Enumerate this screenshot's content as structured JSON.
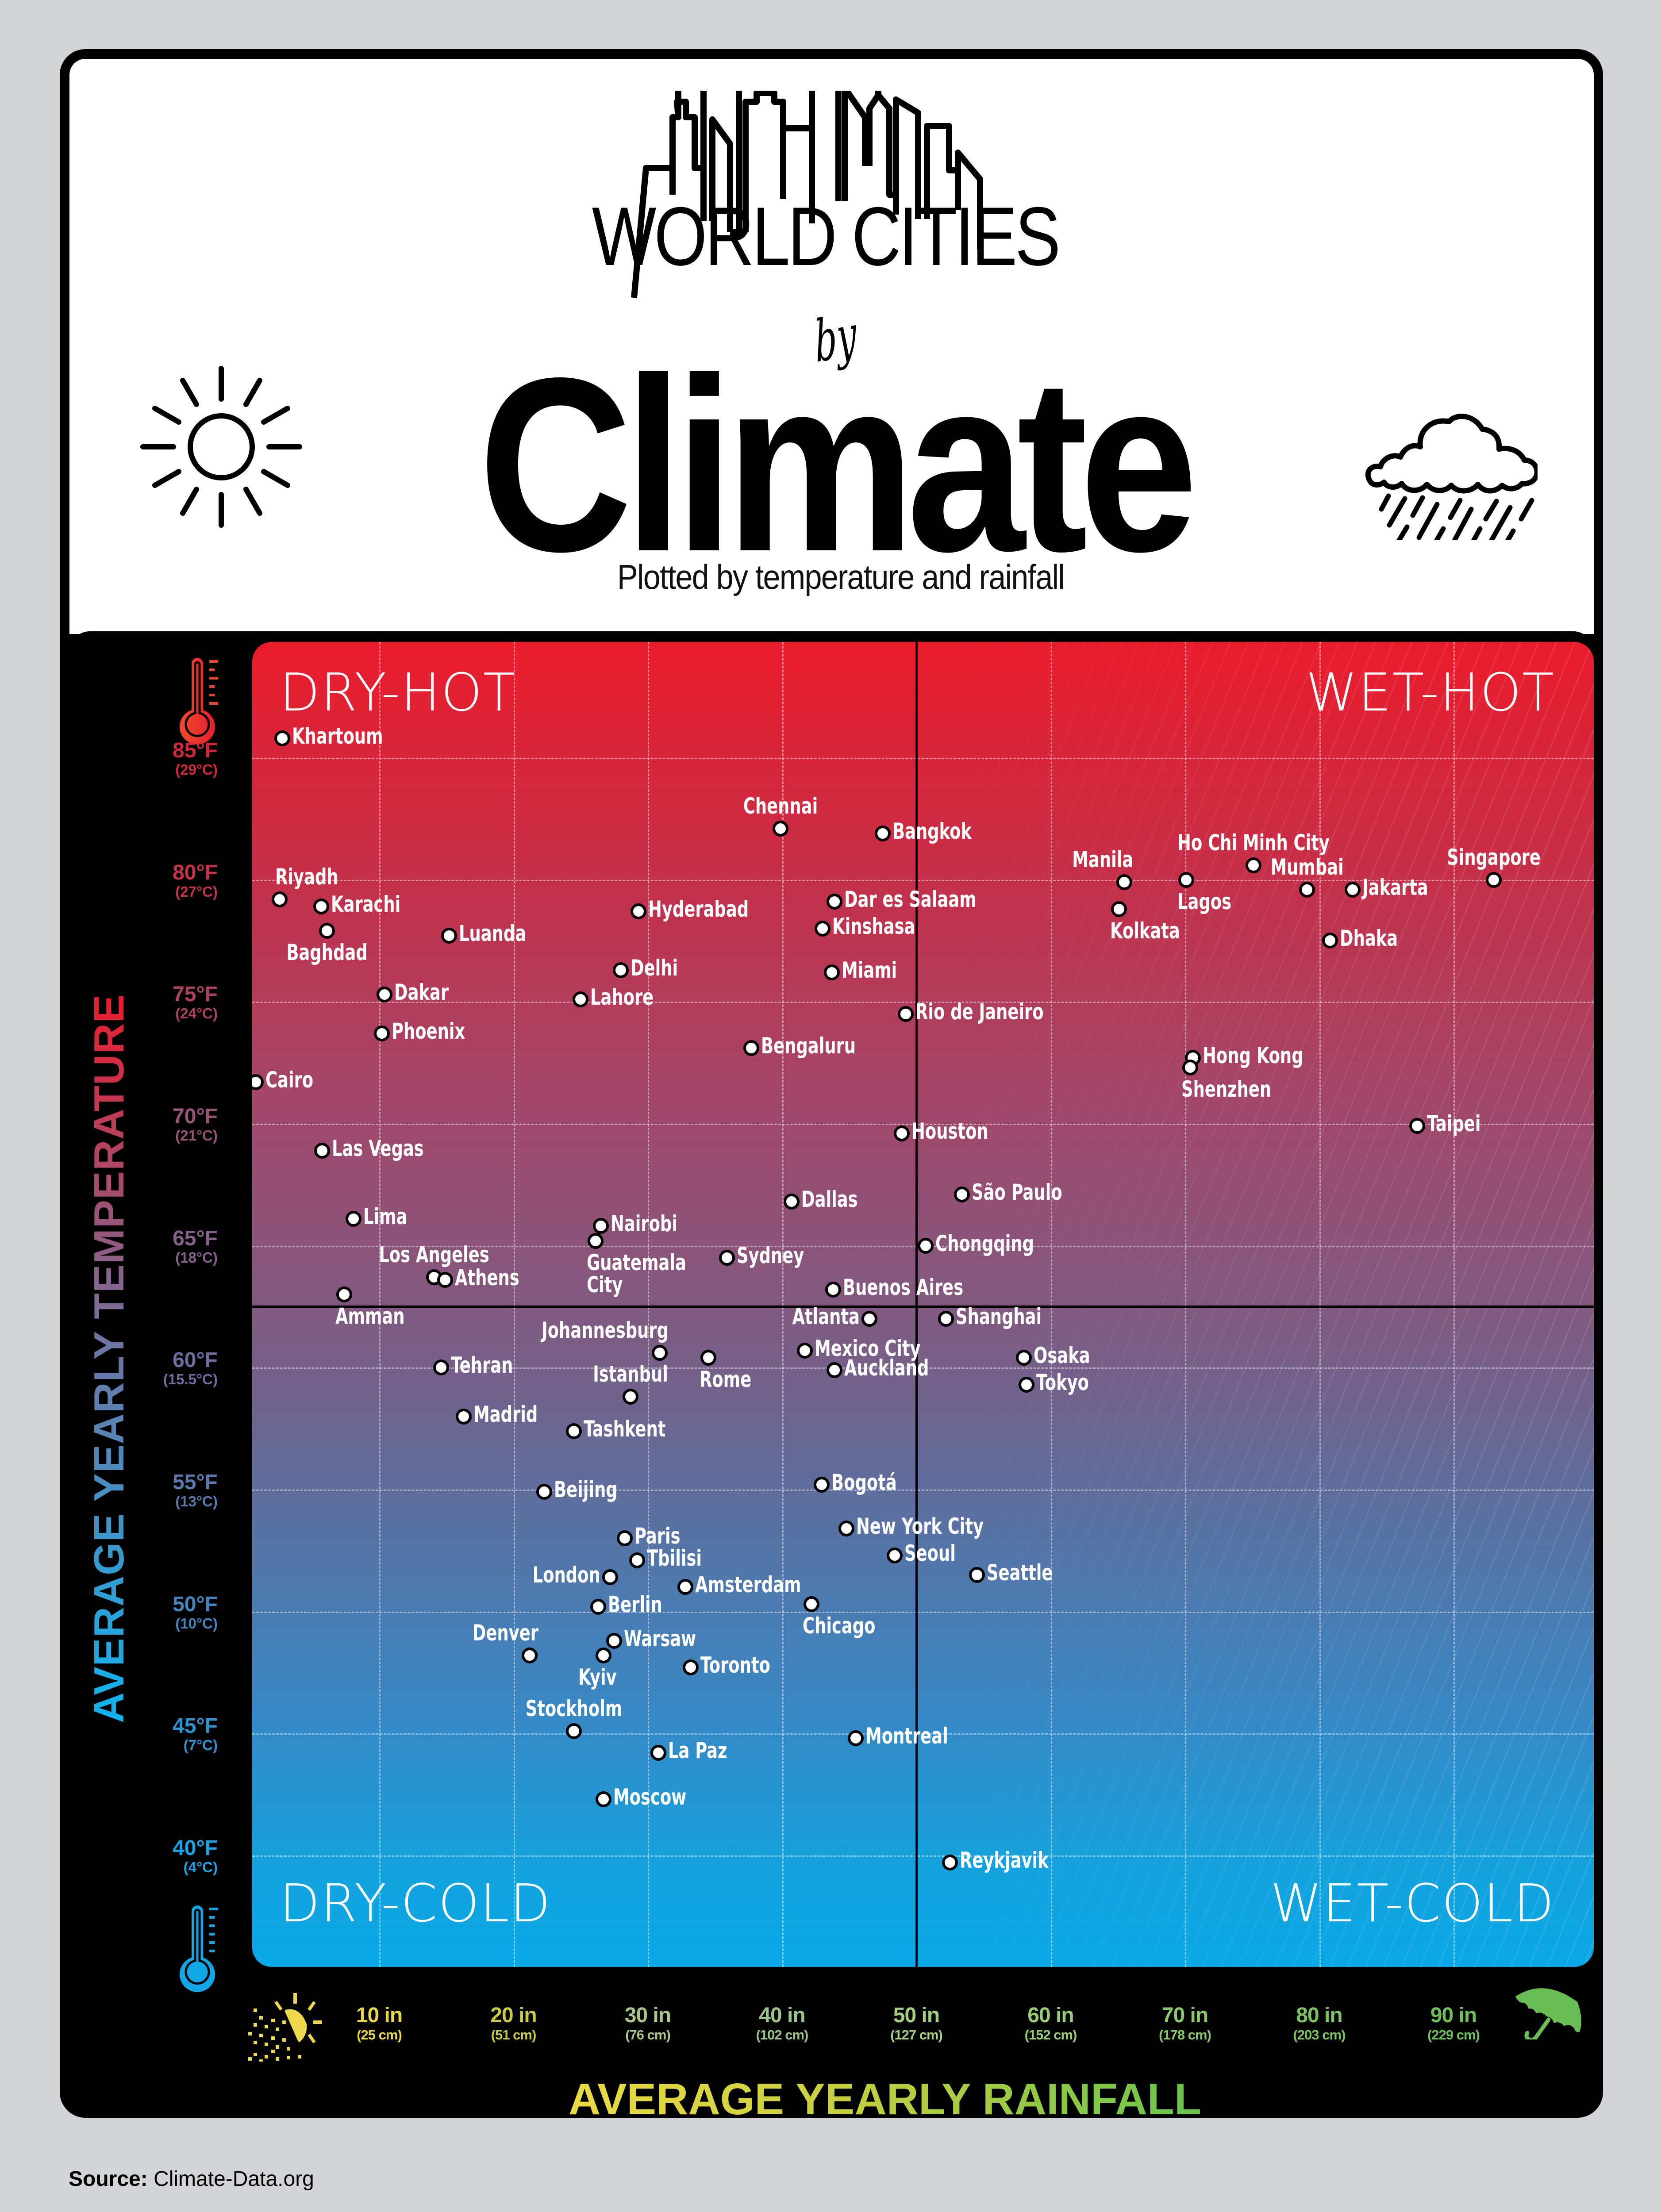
{
  "header": {
    "title_line1": "WORLD CITIES",
    "title_by": "by",
    "title_main": "Climate",
    "subtitle": "Plotted by temperature and rainfall",
    "icons": {
      "left": "sun-icon",
      "right": "rain-cloud-icon",
      "skyline": "city-skyline-icon"
    }
  },
  "quadrants": {
    "top_left": "DRY-HOT",
    "top_right": "WET-HOT",
    "bottom_left": "DRY-COLD",
    "bottom_right": "WET-COLD"
  },
  "y_axis": {
    "title": "AVERAGE YEARLY TEMPERATURE",
    "ticks": [
      {
        "f": "85°F",
        "c": "(29°C)",
        "value": 85,
        "color": "#d0293c"
      },
      {
        "f": "80°F",
        "c": "(27°C)",
        "value": 80,
        "color": "#c3334a"
      },
      {
        "f": "75°F",
        "c": "(24°C)",
        "value": 75,
        "color": "#ad4260"
      },
      {
        "f": "70°F",
        "c": "(21°C)",
        "value": 70,
        "color": "#965476"
      },
      {
        "f": "65°F",
        "c": "(18°C)",
        "value": 65,
        "color": "#83618a"
      },
      {
        "f": "60°F",
        "c": "(15.5°C)",
        "value": 60,
        "color": "#6e6c9e"
      },
      {
        "f": "55°F",
        "c": "(13°C)",
        "value": 55,
        "color": "#5b78ab"
      },
      {
        "f": "50°F",
        "c": "(10°C)",
        "value": 50,
        "color": "#4585bd"
      },
      {
        "f": "45°F",
        "c": "(7°C)",
        "value": 45,
        "color": "#2f93cf"
      },
      {
        "f": "40°F",
        "c": "(4°C)",
        "value": 40,
        "color": "#1aa2e2"
      }
    ],
    "icons": {
      "top": "hot-thermometer-icon",
      "bottom": "cold-thermometer-icon"
    }
  },
  "x_axis": {
    "title": "AVERAGE YEARLY RAINFALL",
    "ticks": [
      {
        "i": "10 in",
        "c": "(25 cm)",
        "value": 10,
        "color": "#e8d64a"
      },
      {
        "i": "20 in",
        "c": "(51 cm)",
        "value": 20,
        "color": "#c9c948"
      },
      {
        "i": "30 in",
        "c": "(76 cm)",
        "value": 30,
        "color": "#a8c48a"
      },
      {
        "i": "40 in",
        "c": "(102 cm)",
        "value": 40,
        "color": "#9cc48a"
      },
      {
        "i": "50 in",
        "c": "(127 cm)",
        "value": 50,
        "color": "#a5cf7e"
      },
      {
        "i": "60 in",
        "c": "(152 cm)",
        "value": 60,
        "color": "#98cc72"
      },
      {
        "i": "70 in",
        "c": "(178 cm)",
        "value": 70,
        "color": "#8ac86a"
      },
      {
        "i": "80 in",
        "c": "(203 cm)",
        "value": 80,
        "color": "#7cc462"
      },
      {
        "i": "90 in",
        "c": "(229 cm)",
        "value": 90,
        "color": "#6fc05a"
      }
    ],
    "icons": {
      "left": "dry-sun-icon",
      "right": "umbrella-icon"
    }
  },
  "source": {
    "label": "Source:",
    "value": "Climate-Data.org"
  },
  "colors": {
    "hot": "#ea1c2c",
    "cold": "#0aa8e6",
    "rainfall_dry": "#f0dd45",
    "rainfall_wet": "#5fc24e",
    "frame": "#000000",
    "page_bg": "#d3d4d6"
  },
  "chart_data": {
    "type": "scatter",
    "title": "World Cities by Climate",
    "subtitle": "Plotted by temperature and rainfall",
    "xlabel": "Average Yearly Rainfall (in)",
    "ylabel": "Average Yearly Temperature (°F)",
    "xlim": [
      0.5,
      100.4
    ],
    "ylim": [
      34.5,
      88.7
    ],
    "x_ticks": [
      10,
      20,
      30,
      40,
      50,
      60,
      70,
      80,
      90
    ],
    "y_ticks": [
      40,
      45,
      50,
      55,
      60,
      65,
      70,
      75,
      80,
      85
    ],
    "divider_x": 50,
    "divider_y": 62.5,
    "grid": true,
    "quadrant_labels": [
      "DRY-HOT",
      "WET-HOT",
      "DRY-COLD",
      "WET-COLD"
    ],
    "points": [
      {
        "city": "Khartoum",
        "rain_in": 2.8,
        "temp_f": 85.8,
        "label": "r"
      },
      {
        "city": "Chennai",
        "rain_in": 39.9,
        "temp_f": 82.1,
        "label": "t"
      },
      {
        "city": "Bangkok",
        "rain_in": 47.5,
        "temp_f": 81.9,
        "label": "r"
      },
      {
        "city": "Ho Chi Minh City",
        "rain_in": 75.1,
        "temp_f": 80.6,
        "label": "t"
      },
      {
        "city": "Singapore",
        "rain_in": 93.0,
        "temp_f": 80.0,
        "label": "t"
      },
      {
        "city": "Manila",
        "rain_in": 65.5,
        "temp_f": 79.9,
        "label": "tl"
      },
      {
        "city": "Lagos",
        "rain_in": 70.1,
        "temp_f": 80.0,
        "label": "br"
      },
      {
        "city": "Mumbai",
        "rain_in": 79.1,
        "temp_f": 79.6,
        "label": "t"
      },
      {
        "city": "Jakarta",
        "rain_in": 82.5,
        "temp_f": 79.6,
        "label": "r"
      },
      {
        "city": "Riyadh",
        "rain_in": 2.6,
        "temp_f": 79.2,
        "label": "tr"
      },
      {
        "city": "Dar es Salaam",
        "rain_in": 43.9,
        "temp_f": 79.1,
        "label": "r"
      },
      {
        "city": "Karachi",
        "rain_in": 5.7,
        "temp_f": 78.9,
        "label": "r"
      },
      {
        "city": "Kolkata",
        "rain_in": 65.1,
        "temp_f": 78.8,
        "label": "br"
      },
      {
        "city": "Hyderabad",
        "rain_in": 29.3,
        "temp_f": 78.7,
        "label": "r"
      },
      {
        "city": "Kinshasa",
        "rain_in": 43.0,
        "temp_f": 78.0,
        "label": "r"
      },
      {
        "city": "Baghdad",
        "rain_in": 6.1,
        "temp_f": 77.9,
        "label": "b"
      },
      {
        "city": "Luanda",
        "rain_in": 15.2,
        "temp_f": 77.7,
        "label": "r"
      },
      {
        "city": "Dhaka",
        "rain_in": 80.8,
        "temp_f": 77.5,
        "label": "r"
      },
      {
        "city": "Delhi",
        "rain_in": 28.0,
        "temp_f": 76.3,
        "label": "r"
      },
      {
        "city": "Miami",
        "rain_in": 43.7,
        "temp_f": 76.2,
        "label": "r"
      },
      {
        "city": "Dakar",
        "rain_in": 10.4,
        "temp_f": 75.3,
        "label": "r"
      },
      {
        "city": "Lahore",
        "rain_in": 25.0,
        "temp_f": 75.1,
        "label": "r"
      },
      {
        "city": "Rio de Janeiro",
        "rain_in": 49.2,
        "temp_f": 74.5,
        "label": "r"
      },
      {
        "city": "Phoenix",
        "rain_in": 10.2,
        "temp_f": 73.7,
        "label": "r"
      },
      {
        "city": "Bengaluru",
        "rain_in": 37.7,
        "temp_f": 73.1,
        "label": "r"
      },
      {
        "city": "Hong Kong",
        "rain_in": 70.6,
        "temp_f": 72.7,
        "label": "r"
      },
      {
        "city": "Shenzhen",
        "rain_in": 70.4,
        "temp_f": 72.3,
        "label": "br"
      },
      {
        "city": "Cairo",
        "rain_in": 0.8,
        "temp_f": 71.7,
        "label": "r"
      },
      {
        "city": "Taipei",
        "rain_in": 87.3,
        "temp_f": 69.9,
        "label": "r"
      },
      {
        "city": "Houston",
        "rain_in": 48.9,
        "temp_f": 69.6,
        "label": "r"
      },
      {
        "city": "Las Vegas",
        "rain_in": 5.75,
        "temp_f": 68.9,
        "label": "r"
      },
      {
        "city": "São Paulo",
        "rain_in": 53.4,
        "temp_f": 67.1,
        "label": "r"
      },
      {
        "city": "Dallas",
        "rain_in": 40.7,
        "temp_f": 66.8,
        "label": "r"
      },
      {
        "city": "Lima",
        "rain_in": 8.1,
        "temp_f": 66.1,
        "label": "r"
      },
      {
        "city": "Nairobi",
        "rain_in": 26.5,
        "temp_f": 65.8,
        "label": "r"
      },
      {
        "city": "Guatemala City",
        "rain_in": 26.1,
        "temp_f": 65.2,
        "label": "br"
      },
      {
        "city": "Chongqing",
        "rain_in": 50.7,
        "temp_f": 65.0,
        "label": "r"
      },
      {
        "city": "Sydney",
        "rain_in": 35.9,
        "temp_f": 64.5,
        "label": "r"
      },
      {
        "city": "Los Angeles",
        "rain_in": 14.1,
        "temp_f": 63.7,
        "label": "t"
      },
      {
        "city": "Athens",
        "rain_in": 14.9,
        "temp_f": 63.6,
        "label": "r"
      },
      {
        "city": "Buenos Aires",
        "rain_in": 43.8,
        "temp_f": 63.2,
        "label": "r"
      },
      {
        "city": "Amman",
        "rain_in": 7.4,
        "temp_f": 63.0,
        "label": "br"
      },
      {
        "city": "Atlanta",
        "rain_in": 46.5,
        "temp_f": 62.0,
        "label": "l"
      },
      {
        "city": "Shanghai",
        "rain_in": 52.2,
        "temp_f": 62.0,
        "label": "r"
      },
      {
        "city": "Mexico City",
        "rain_in": 41.7,
        "temp_f": 60.7,
        "label": "r"
      },
      {
        "city": "Johannesburg",
        "rain_in": 30.9,
        "temp_f": 60.6,
        "label": "tl"
      },
      {
        "city": "Rome",
        "rain_in": 34.5,
        "temp_f": 60.4,
        "label": "br"
      },
      {
        "city": "Osaka",
        "rain_in": 58.0,
        "temp_f": 60.4,
        "label": "r"
      },
      {
        "city": "Tehran",
        "rain_in": 14.6,
        "temp_f": 60.0,
        "label": "r"
      },
      {
        "city": "Auckland",
        "rain_in": 43.9,
        "temp_f": 59.9,
        "label": "r"
      },
      {
        "city": "Tokyo",
        "rain_in": 58.2,
        "temp_f": 59.3,
        "label": "r"
      },
      {
        "city": "Istanbul",
        "rain_in": 28.7,
        "temp_f": 58.8,
        "label": "t"
      },
      {
        "city": "Madrid",
        "rain_in": 16.3,
        "temp_f": 58.0,
        "label": "r"
      },
      {
        "city": "Tashkent",
        "rain_in": 24.5,
        "temp_f": 57.4,
        "label": "r"
      },
      {
        "city": "Bogotá",
        "rain_in": 42.95,
        "temp_f": 55.2,
        "label": "r"
      },
      {
        "city": "Beijing",
        "rain_in": 22.3,
        "temp_f": 54.9,
        "label": "r"
      },
      {
        "city": "New York City",
        "rain_in": 44.8,
        "temp_f": 53.4,
        "label": "r"
      },
      {
        "city": "Paris",
        "rain_in": 28.3,
        "temp_f": 53.0,
        "label": "r"
      },
      {
        "city": "Seoul",
        "rain_in": 48.4,
        "temp_f": 52.3,
        "label": "r"
      },
      {
        "city": "Tbilisi",
        "rain_in": 29.2,
        "temp_f": 52.1,
        "label": "r"
      },
      {
        "city": "Seattle",
        "rain_in": 54.5,
        "temp_f": 51.5,
        "label": "r"
      },
      {
        "city": "London",
        "rain_in": 27.2,
        "temp_f": 51.4,
        "label": "l"
      },
      {
        "city": "Amsterdam",
        "rain_in": 32.8,
        "temp_f": 51.0,
        "label": "r"
      },
      {
        "city": "Chicago",
        "rain_in": 42.2,
        "temp_f": 50.3,
        "label": "br"
      },
      {
        "city": "Berlin",
        "rain_in": 26.3,
        "temp_f": 50.2,
        "label": "r"
      },
      {
        "city": "Warsaw",
        "rain_in": 27.5,
        "temp_f": 48.8,
        "label": "r"
      },
      {
        "city": "Denver",
        "rain_in": 21.2,
        "temp_f": 48.2,
        "label": "tl"
      },
      {
        "city": "Kyiv",
        "rain_in": 26.7,
        "temp_f": 48.2,
        "label": "bl"
      },
      {
        "city": "Toronto",
        "rain_in": 33.2,
        "temp_f": 47.7,
        "label": "r"
      },
      {
        "city": "Stockholm",
        "rain_in": 24.5,
        "temp_f": 45.1,
        "label": "t"
      },
      {
        "city": "Montreal",
        "rain_in": 45.5,
        "temp_f": 44.8,
        "label": "r"
      },
      {
        "city": "La Paz",
        "rain_in": 30.8,
        "temp_f": 44.2,
        "label": "r"
      },
      {
        "city": "Moscow",
        "rain_in": 26.7,
        "temp_f": 42.3,
        "label": "r"
      },
      {
        "city": "Reykjavik",
        "rain_in": 52.5,
        "temp_f": 39.7,
        "label": "r"
      }
    ]
  }
}
